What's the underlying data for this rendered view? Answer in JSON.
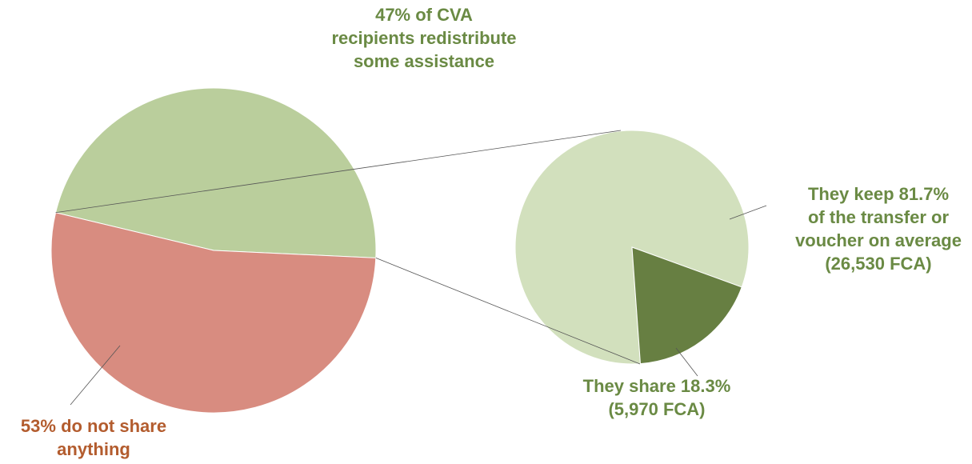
{
  "colors": {
    "no_share": "#d88c80",
    "redistribute": "#bace9c",
    "keep": "#d2e0bd",
    "share": "#677f42",
    "label_green": "#6a8a44",
    "label_red": "#b35c2e",
    "connector": "#555555"
  },
  "chart_data": [
    {
      "type": "pie",
      "labels": [
        "53% do not share anything",
        "47% of CVA recipients redistribute some assistance"
      ],
      "values": [
        53,
        47
      ]
    },
    {
      "type": "pie",
      "labels": [
        "They keep 81.7% of the transfer or voucher on average (26,530 FCA)",
        "They share 18.3% (5,970 FCA)"
      ],
      "values": [
        81.7,
        18.3
      ]
    }
  ],
  "labels": {
    "redistribute": "47% of CVA\nrecipients redistribute\nsome assistance",
    "keep": "They keep 81.7%\nof the transfer or\nvoucher on average\n(26,530 FCA)",
    "share": "They share 18.3%\n(5,970 FCA)",
    "no_share": "53% do not share\nanything"
  }
}
